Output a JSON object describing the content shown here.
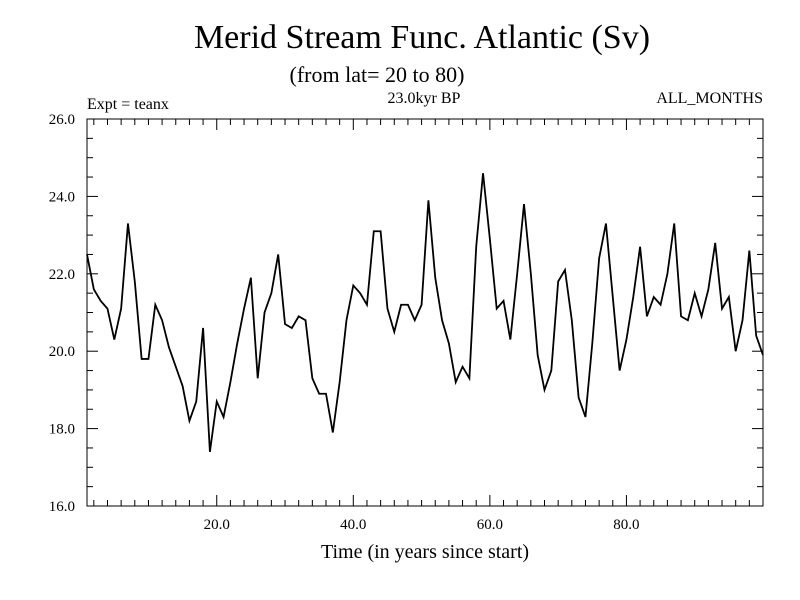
{
  "chart_data": {
    "type": "line",
    "title": "Merid Stream Func. Atlantic (Sv)",
    "subtitle": "(from lat= 20 to 80)",
    "experiment": "Expt = teanx",
    "period": "23.0kyr BP",
    "months": "ALL_MONTHS",
    "xlabel": "Time (in years since start)",
    "ylabel": "",
    "xlim": [
      1,
      100
    ],
    "ylim": [
      16.0,
      26.0
    ],
    "xticks": [
      20,
      40,
      60,
      80
    ],
    "xtick_labels": [
      "20.0",
      "40.0",
      "60.0",
      "80.0"
    ],
    "yticks": [
      16,
      18,
      20,
      22,
      24,
      26
    ],
    "ytick_labels": [
      "16.0",
      "18.0",
      "20.0",
      "22.0",
      "24.0",
      "26.0"
    ],
    "x": [
      1,
      2,
      3,
      4,
      5,
      6,
      7,
      8,
      9,
      10,
      11,
      12,
      13,
      14,
      15,
      16,
      17,
      18,
      19,
      20,
      21,
      22,
      23,
      24,
      25,
      26,
      27,
      28,
      29,
      30,
      31,
      32,
      33,
      34,
      35,
      36,
      37,
      38,
      39,
      40,
      41,
      42,
      43,
      44,
      45,
      46,
      47,
      48,
      49,
      50,
      51,
      52,
      53,
      54,
      55,
      56,
      57,
      58,
      59,
      60,
      61,
      62,
      63,
      64,
      65,
      66,
      67,
      68,
      69,
      70,
      71,
      72,
      73,
      74,
      75,
      76,
      77,
      78,
      79,
      80,
      81,
      82,
      83,
      84,
      85,
      86,
      87,
      88,
      89,
      90,
      91,
      92,
      93,
      94,
      95,
      96,
      97,
      98,
      99,
      100
    ],
    "series": [
      {
        "name": "Merid Stream Func. Atlantic",
        "values": [
          22.5,
          21.6,
          21.3,
          21.1,
          20.3,
          21.1,
          23.3,
          21.8,
          19.8,
          19.8,
          21.2,
          20.8,
          20.1,
          19.6,
          19.1,
          18.2,
          18.7,
          20.6,
          17.4,
          18.7,
          18.3,
          19.2,
          20.2,
          21.1,
          21.9,
          19.3,
          21.0,
          21.5,
          22.5,
          20.7,
          20.6,
          20.9,
          20.8,
          19.3,
          18.9,
          18.9,
          17.9,
          19.2,
          20.8,
          21.7,
          21.5,
          21.2,
          23.1,
          23.1,
          21.1,
          20.5,
          21.2,
          21.2,
          20.8,
          21.2,
          23.9,
          21.9,
          20.8,
          20.2,
          19.2,
          19.6,
          19.3,
          22.7,
          24.6,
          22.9,
          21.1,
          21.3,
          20.3,
          22.0,
          23.8,
          22.0,
          19.9,
          19.0,
          19.5,
          21.8,
          22.1,
          20.8,
          18.8,
          18.3,
          20.2,
          22.4,
          23.3,
          21.4,
          19.5,
          20.3,
          21.4,
          22.7,
          20.9,
          21.4,
          21.2,
          22.0,
          23.3,
          20.9,
          20.8,
          21.5,
          20.9,
          21.6,
          22.8,
          21.1,
          21.4,
          20.0,
          20.8,
          22.6,
          20.4,
          19.9
        ]
      }
    ]
  }
}
